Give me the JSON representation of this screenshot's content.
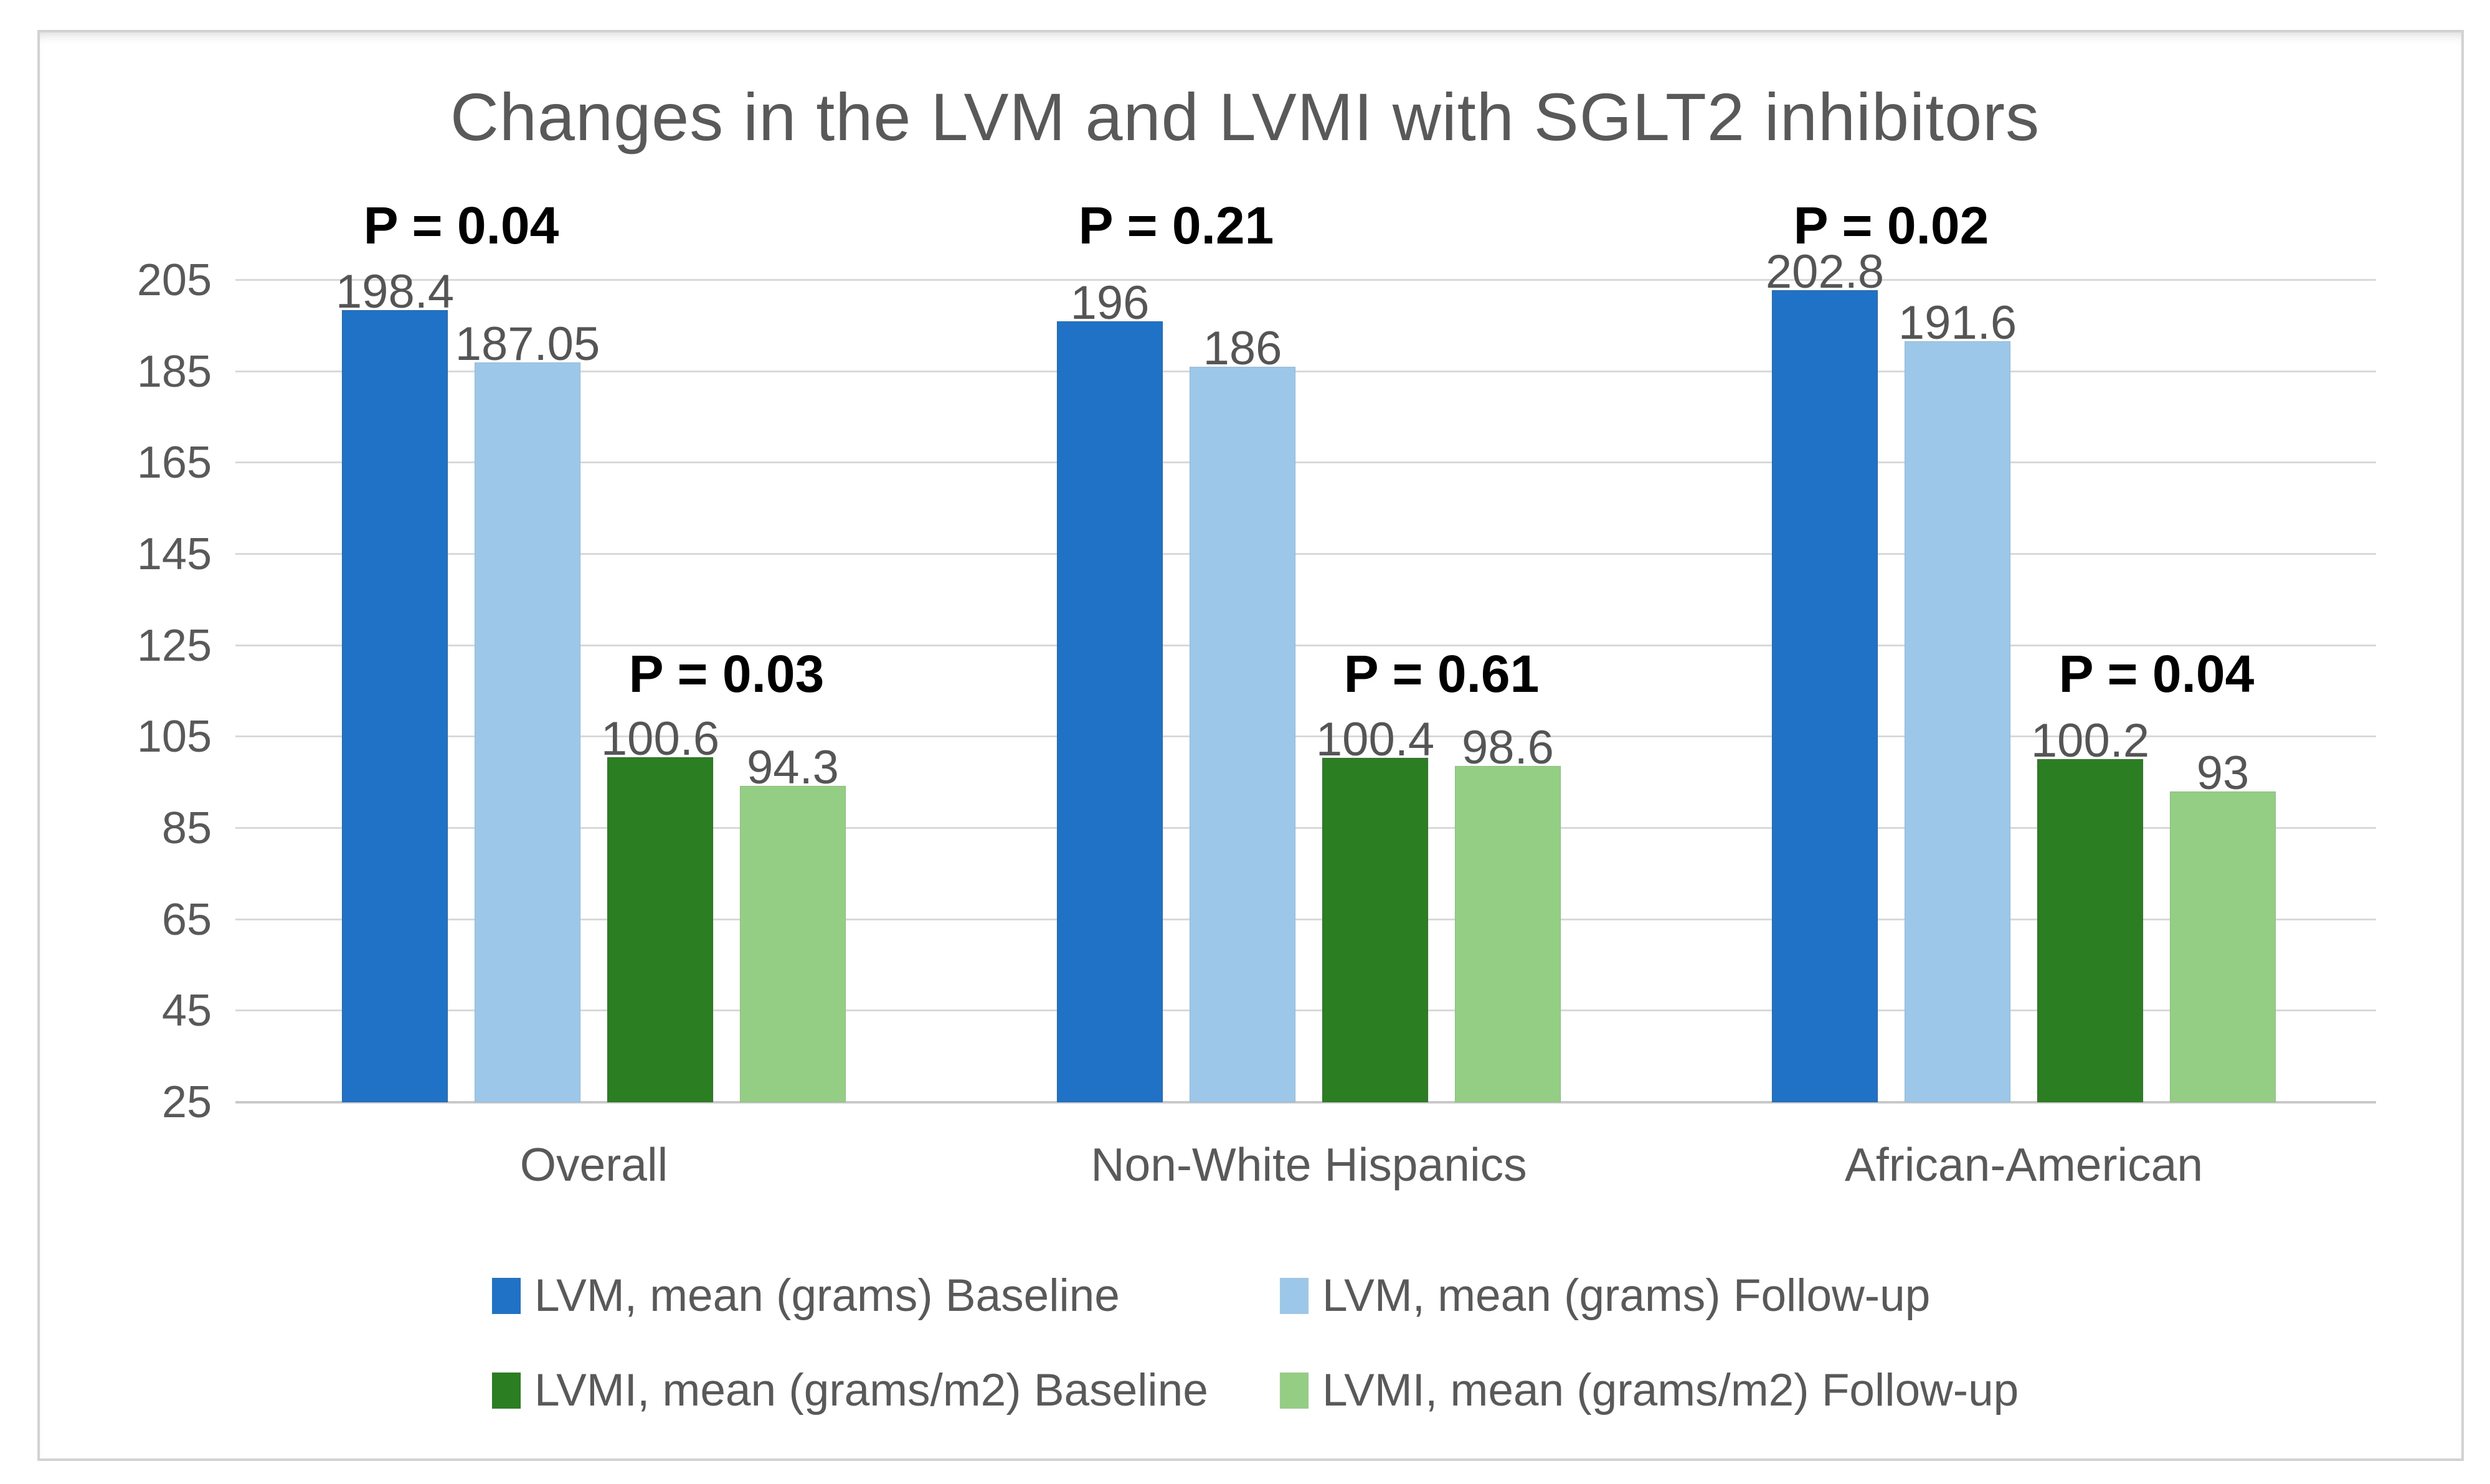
{
  "chart_data": {
    "type": "bar",
    "title": "Changes in the LVM and LVMI with SGLT2 inhibitors",
    "categories": [
      "Overall",
      "Non-White Hispanics",
      "African-American"
    ],
    "series": [
      {
        "name": "LVM, mean (grams) Baseline",
        "color": "#1F72C6",
        "values": [
          198.4,
          196,
          202.8
        ]
      },
      {
        "name": "LVM, mean (grams) Follow-up",
        "color": "#9CC7E9",
        "values": [
          187.05,
          186,
          191.6
        ]
      },
      {
        "name": "LVMI, mean (grams/m2) Baseline",
        "color": "#2B7E22",
        "values": [
          100.6,
          100.4,
          100.2
        ]
      },
      {
        "name": "LVMI, mean (grams/m2) Follow-up",
        "color": "#93CE84",
        "values": [
          94.3,
          98.6,
          93
        ]
      }
    ],
    "p_values": {
      "lvm_pair": [
        "P = 0.04",
        "P = 0.21",
        "P = 0.02"
      ],
      "lvmi_pair": [
        "P = 0.03",
        "P = 0.61",
        "P = 0.04"
      ]
    },
    "y_axis": {
      "min": 25,
      "max": 205,
      "ticks": [
        205,
        185,
        165,
        145,
        125,
        105,
        85,
        65,
        45,
        25
      ]
    },
    "grid": true,
    "legend_position": "bottom",
    "colors": {
      "grid": "#d9d9d9",
      "axis_text": "#595959",
      "title_text": "#595959",
      "data_label_text": "#555555",
      "p_label_text": "#000000"
    }
  }
}
